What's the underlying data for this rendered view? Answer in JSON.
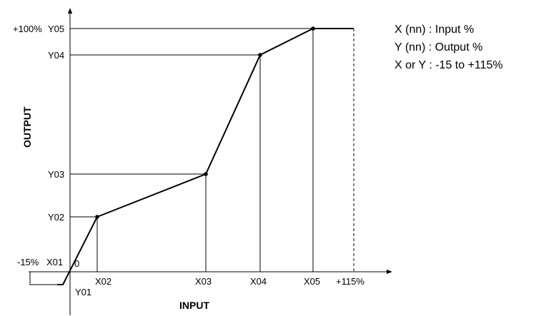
{
  "diagram": {
    "x_axis_title": "INPUT",
    "y_axis_title": "OUTPUT",
    "x_labels": {
      "x01": "X01",
      "x02": "X02",
      "x03": "X03",
      "x04": "X04",
      "x05": "X05",
      "x_max": "+115%",
      "x_min": "-15%"
    },
    "y_labels": {
      "y01": "Y01",
      "y02": "Y02",
      "y03": "Y03",
      "y04": "Y04",
      "y05": "Y05",
      "y_max": "+100%"
    },
    "origin_label": "0",
    "legend": [
      "X (nn) : Input %",
      "Y (nn) : Output %",
      "X or Y : -15 to +115%"
    ]
  }
}
